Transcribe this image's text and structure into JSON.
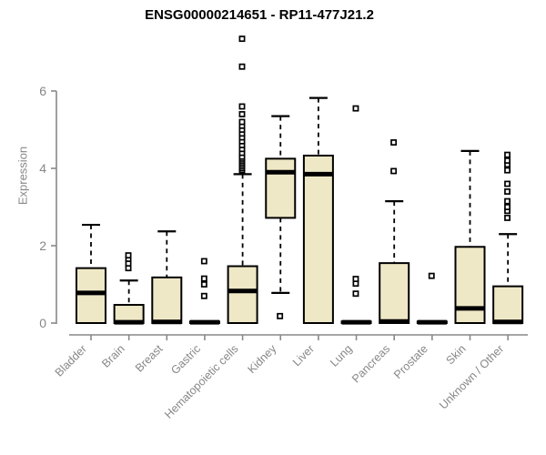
{
  "title": "ENSG00000214651 - RP11-477J21.2",
  "colors": {
    "box_fill": "#EFE8C6",
    "box_border": "#000000",
    "median": "#000000",
    "whisker": "#000000",
    "axis": "#898989",
    "tick_label": "#878787",
    "title": "#000000",
    "background": "#FFFFFF"
  },
  "chart_data": {
    "type": "boxplot",
    "title": "ENSG00000214651 - RP11-477J21.2",
    "xlabel": "",
    "ylabel": "Expression",
    "ylim": [
      0,
      7.4
    ],
    "yticks": [
      0,
      2,
      4,
      6
    ],
    "grid": false,
    "categories": [
      "Bladder",
      "Brain",
      "Breast",
      "Gastric",
      "Hematopoietic cells",
      "Kidney",
      "Liver",
      "Lung",
      "Pancreas",
      "Prostate",
      "Skin",
      "Unknown / Other"
    ],
    "series": [
      {
        "name": "Bladder",
        "whisker_low": 0,
        "q1": 0,
        "median": 0.78,
        "q3": 1.42,
        "whisker_high": 2.54,
        "outliers": []
      },
      {
        "name": "Brain",
        "whisker_low": 0,
        "q1": 0,
        "median": 0.02,
        "q3": 0.47,
        "whisker_high": 1.1,
        "outliers": [
          1.42,
          1.54,
          1.66,
          1.75
        ]
      },
      {
        "name": "Breast",
        "whisker_low": 0,
        "q1": 0,
        "median": 0.03,
        "q3": 1.18,
        "whisker_high": 2.37,
        "outliers": []
      },
      {
        "name": "Gastric",
        "whisker_low": 0,
        "q1": 0,
        "median": 0.02,
        "q3": 0.04,
        "whisker_high": 0.04,
        "outliers": [
          0.7,
          1.0,
          1.15,
          1.6
        ]
      },
      {
        "name": "Hematopoietic cells",
        "whisker_low": 0,
        "q1": 0,
        "median": 0.83,
        "q3": 1.47,
        "whisker_high": 3.85,
        "outliers": [
          3.95,
          4.0,
          4.05,
          4.1,
          4.15,
          4.2,
          4.25,
          4.3,
          4.4,
          4.5,
          4.6,
          4.7,
          4.8,
          4.9,
          5.0,
          5.1,
          5.2,
          5.4,
          5.6,
          6.63,
          7.35
        ]
      },
      {
        "name": "Kidney",
        "whisker_low": 0.78,
        "q1": 2.72,
        "median": 3.9,
        "q3": 4.25,
        "whisker_high": 5.35,
        "outliers": [
          0.18
        ]
      },
      {
        "name": "Liver",
        "whisker_low": 0,
        "q1": 0,
        "median": 3.85,
        "q3": 4.33,
        "whisker_high": 5.82,
        "outliers": []
      },
      {
        "name": "Lung",
        "whisker_low": 0,
        "q1": 0,
        "median": 0.02,
        "q3": 0.04,
        "whisker_high": 0.04,
        "outliers": [
          0.76,
          1.02,
          1.14,
          5.55
        ]
      },
      {
        "name": "Pancreas",
        "whisker_low": 0,
        "q1": 0,
        "median": 0.04,
        "q3": 1.55,
        "whisker_high": 3.15,
        "outliers": [
          3.93,
          4.67
        ]
      },
      {
        "name": "Prostate",
        "whisker_low": 0,
        "q1": 0,
        "median": 0.02,
        "q3": 0.04,
        "whisker_high": 0.04,
        "outliers": [
          1.22
        ]
      },
      {
        "name": "Skin",
        "whisker_low": 0,
        "q1": 0,
        "median": 0.38,
        "q3": 1.97,
        "whisker_high": 4.45,
        "outliers": []
      },
      {
        "name": "Unknown / Other",
        "whisker_low": 0,
        "q1": 0,
        "median": 0.03,
        "q3": 0.95,
        "whisker_high": 2.3,
        "outliers": [
          2.72,
          2.9,
          3.0,
          3.15,
          3.4,
          3.6,
          3.95,
          4.1,
          4.2,
          4.35
        ]
      }
    ]
  }
}
